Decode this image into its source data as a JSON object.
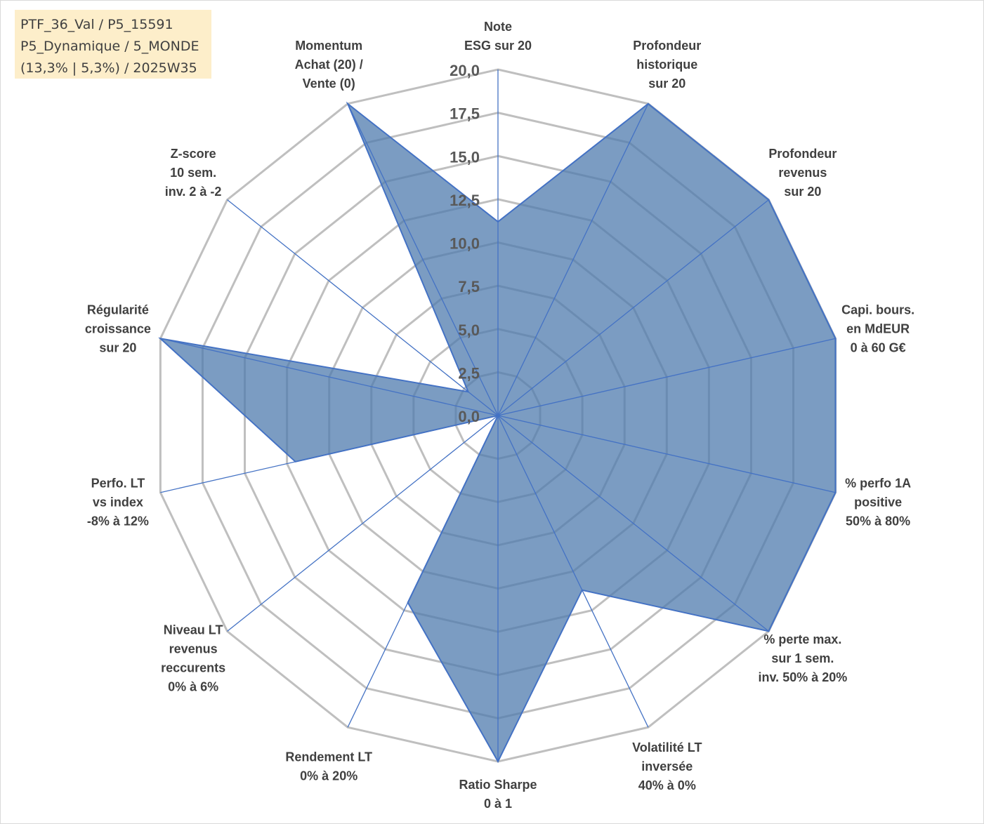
{
  "info": {
    "line1": "PTF_36_Val / P5_15591",
    "line2": "P5_Dynamique / 5_MONDE",
    "line3": "(13,3% | 5,3%) / 2025W35"
  },
  "colors": {
    "fill": "#4f7bae",
    "line": "#4472c4",
    "grid": "#bfbfbf",
    "label": "#404040",
    "info_bg": "#fdeeca"
  },
  "chart_data": {
    "type": "radar",
    "title": "",
    "rmin": 0,
    "rmax": 20,
    "grid": true,
    "tick_labels": [
      "0,0",
      "2,5",
      "5,0",
      "7,5",
      "10,0",
      "12,5",
      "15,0",
      "17,5",
      "20,0"
    ],
    "categories": [
      [
        "Note",
        "ESG sur 20"
      ],
      [
        "Profondeur",
        "historique",
        "sur 20"
      ],
      [
        "Profondeur",
        "revenus",
        "sur 20"
      ],
      [
        "Capi. bours.",
        "en MdEUR",
        "0 à 60 G€"
      ],
      [
        "% perfo 1A",
        "positive",
        "50% à 80%"
      ],
      [
        "% perte max.",
        "sur 1 sem.",
        "inv. 50% à 20%"
      ],
      [
        "Volatilité LT",
        "inversée",
        "40% à 0%"
      ],
      [
        "Ratio Sharpe",
        "0 à 1"
      ],
      [
        "Rendement LT",
        "0% à 20%"
      ],
      [
        "Niveau LT",
        "revenus",
        "reccurents",
        "0% à 6%"
      ],
      [
        "Perfo. LT",
        "vs index",
        "-8% à 12%"
      ],
      [
        "Régularité",
        "croissance",
        "sur 20"
      ],
      [
        "Z-score",
        "10 sem.",
        "inv. 2 à -2"
      ],
      [
        "Momentum",
        "Achat (20) /",
        "Vente (0)"
      ]
    ],
    "series": [
      {
        "values": [
          11.2,
          20.0,
          20.0,
          20.0,
          20.0,
          20.0,
          11.2,
          20.0,
          12.0,
          0.0,
          12.0,
          20.0,
          2.2,
          20.0
        ]
      }
    ]
  }
}
